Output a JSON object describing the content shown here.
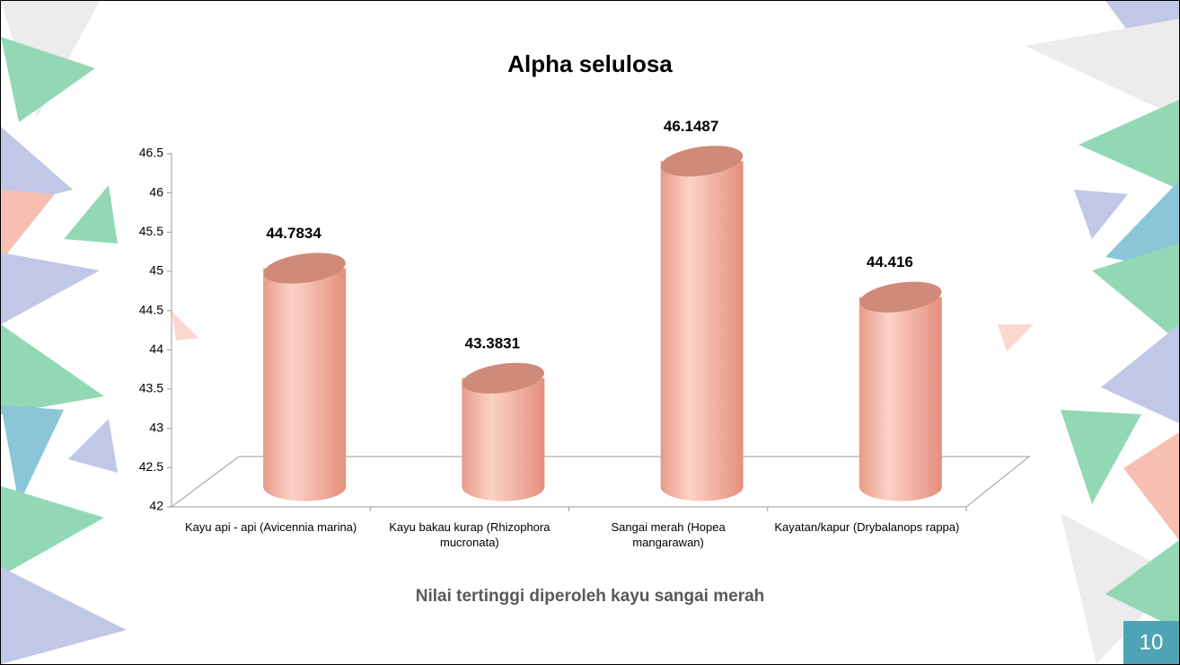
{
  "chart_data": {
    "type": "bar3d",
    "title": "Alpha selulosa",
    "categories": [
      "Kayu api - api (Avicennia marina)",
      "Kayu bakau kurap (Rhizophora mucronata)",
      "Sangai merah (Hopea mangarawan)",
      "Kayatan/kapur (Drybalanops rappa)"
    ],
    "values": [
      44.7834,
      43.3831,
      46.1487,
      44.416
    ],
    "color": "#f2a896",
    "ylim": [
      42,
      46.5
    ],
    "yticks": [
      42,
      42.5,
      43,
      43.5,
      44,
      44.5,
      45,
      45.5,
      46,
      46.5
    ],
    "annotation": "Nilai tertinggi diperoleh kayu sangai merah"
  },
  "slide_number": "10"
}
